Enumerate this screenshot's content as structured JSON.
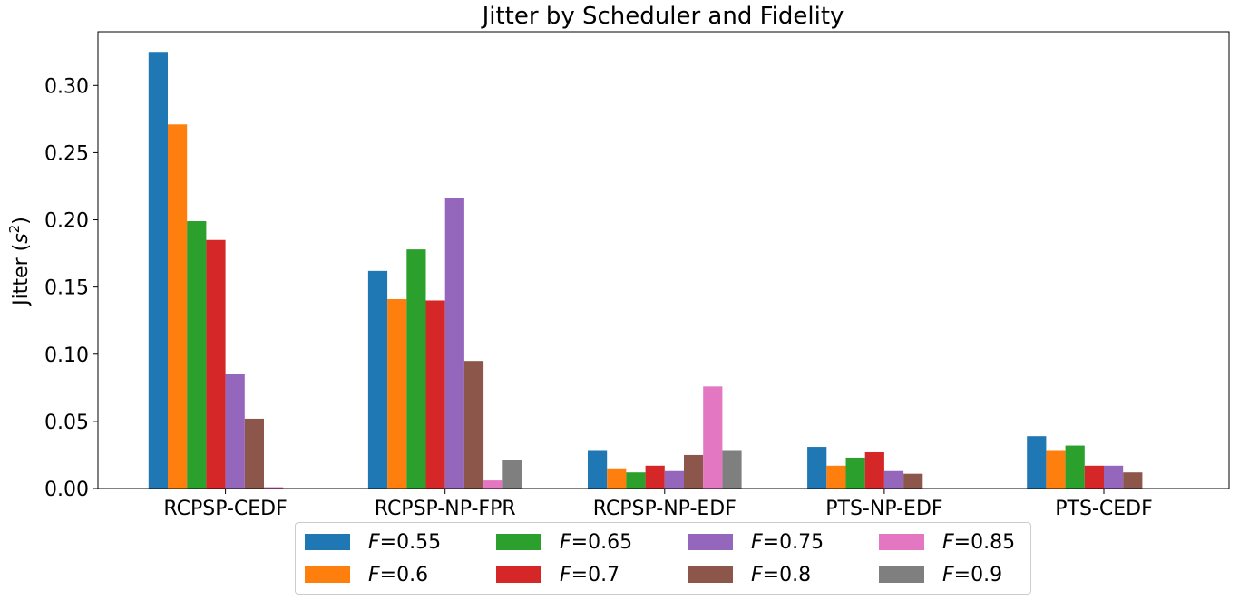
{
  "chart_data": {
    "type": "bar",
    "title": "Jitter by Scheduler and Fidelity",
    "ylabel_prefix": "Jitter (",
    "ylabel_var": "s",
    "ylabel_sup": "2",
    "ylabel_suffix": ")",
    "xlabel": "",
    "ylim": [
      0,
      0.34
    ],
    "yticks": [
      0.0,
      0.05,
      0.1,
      0.15,
      0.2,
      0.25,
      0.3
    ],
    "ytick_labels": [
      "0.00",
      "0.05",
      "0.10",
      "0.15",
      "0.20",
      "0.25",
      "0.30"
    ],
    "grid": false,
    "legend_position": "bottom-center",
    "legend_columns": 4,
    "categories": [
      "RCPSP-CEDF",
      "RCPSP-NP-FPR",
      "RCPSP-NP-EDF",
      "PTS-NP-EDF",
      "PTS-CEDF"
    ],
    "series": [
      {
        "name": "F=0.55",
        "var": "F",
        "value_label": "=0.55",
        "color": "#1f77b4",
        "values": [
          0.325,
          0.162,
          0.028,
          0.031,
          0.039
        ]
      },
      {
        "name": "F=0.6",
        "var": "F",
        "value_label": "=0.6",
        "color": "#ff7f0e",
        "values": [
          0.271,
          0.141,
          0.015,
          0.017,
          0.028
        ]
      },
      {
        "name": "F=0.65",
        "var": "F",
        "value_label": "=0.65",
        "color": "#2ca02c",
        "values": [
          0.199,
          0.178,
          0.012,
          0.023,
          0.032
        ]
      },
      {
        "name": "F=0.7",
        "var": "F",
        "value_label": "=0.7",
        "color": "#d62728",
        "values": [
          0.185,
          0.14,
          0.017,
          0.027,
          0.017
        ]
      },
      {
        "name": "F=0.75",
        "var": "F",
        "value_label": "=0.75",
        "color": "#9467bd",
        "values": [
          0.085,
          0.216,
          0.013,
          0.013,
          0.017
        ]
      },
      {
        "name": "F=0.8",
        "var": "F",
        "value_label": "=0.8",
        "color": "#8c564b",
        "values": [
          0.052,
          0.095,
          0.025,
          0.011,
          0.012
        ]
      },
      {
        "name": "F=0.85",
        "var": "F",
        "value_label": "=0.85",
        "color": "#e377c2",
        "values": [
          0.001,
          0.006,
          0.076,
          0.0,
          0.0
        ]
      },
      {
        "name": "F=0.9",
        "var": "F",
        "value_label": "=0.9",
        "color": "#7f7f7f",
        "values": [
          0.0,
          0.021,
          0.028,
          0.0,
          0.0
        ]
      }
    ]
  }
}
